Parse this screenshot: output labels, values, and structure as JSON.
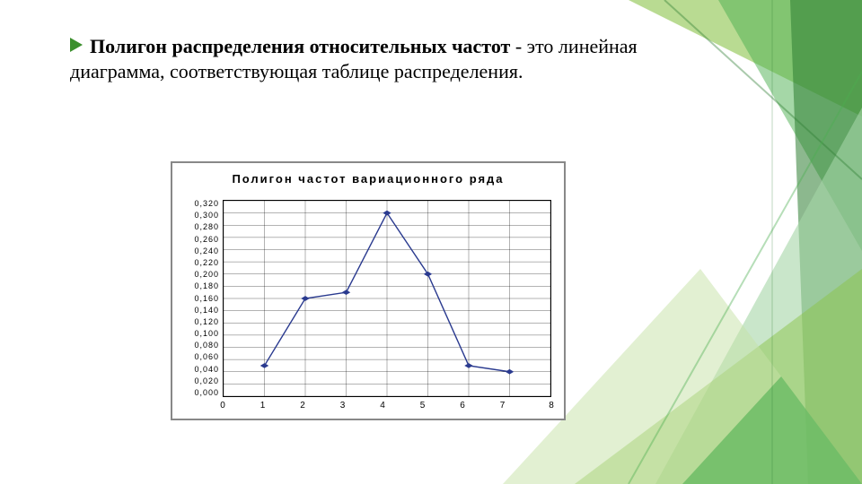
{
  "text": {
    "bold_part": "Полигон распределения относительных частот",
    "rest": " - это линейная диаграмма, соответствующая таблице распределения."
  },
  "chart": {
    "type": "line",
    "title": "Полигон частот вариационного ряда",
    "title_fontsize": 13,
    "x": [
      0,
      1,
      2,
      3,
      4,
      5,
      6,
      7,
      8
    ],
    "y_labels": [
      "0,320",
      "0,300",
      "0,280",
      "0,260",
      "0,240",
      "0,220",
      "0,200",
      "0,180",
      "0,160",
      "0,140",
      "0,120",
      "0,100",
      "0,080",
      "0,060",
      "0,040",
      "0,020",
      "0,000"
    ],
    "ylim": [
      0,
      0.32
    ],
    "ytick_step": 0.02,
    "xlim": [
      0,
      8
    ],
    "series": {
      "x": [
        1,
        2,
        3,
        4,
        5,
        6,
        7
      ],
      "y": [
        0.05,
        0.16,
        0.17,
        0.3,
        0.2,
        0.05,
        0.04
      ]
    },
    "line_color": "#2a3a8f",
    "line_width": 1.4,
    "marker_style": "diamond",
    "marker_size": 5,
    "marker_color": "#2a3a8f",
    "grid_color": "#000000",
    "background_color": "#ffffff",
    "label_fontsize": 9
  },
  "decoration": {
    "accent_colors": [
      "#8bc34a",
      "#4caf50",
      "#2e7d32",
      "#a5d6a7",
      "#c5e1a5"
    ]
  }
}
